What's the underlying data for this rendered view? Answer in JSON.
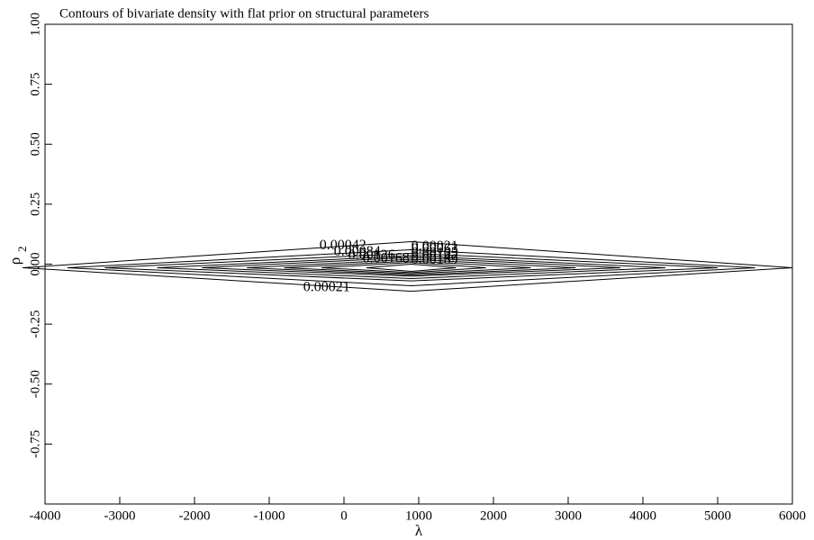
{
  "chart_data": {
    "type": "contour",
    "title": "Contours of bivariate density with flat prior on structural parameters",
    "xlabel": "λ",
    "ylabel": {
      "text": "ρ",
      "sub": "2"
    },
    "xlim": [
      -4000,
      6000
    ],
    "ylim": [
      -1,
      1
    ],
    "xticks": [
      -4000,
      -3000,
      -2000,
      -1000,
      0,
      1000,
      2000,
      3000,
      4000,
      5000,
      6000
    ],
    "yticks": [
      {
        "value": -0.75,
        "label": "-0.75"
      },
      {
        "value": -0.5,
        "label": "-0.50"
      },
      {
        "value": -0.25,
        "label": "-0.25"
      },
      {
        "value": 0,
        "label": "0.00"
      },
      {
        "value": 0.25,
        "label": "0.25"
      },
      {
        "value": 0.5,
        "label": "0.50"
      },
      {
        "value": 0.75,
        "label": "0.75"
      },
      {
        "value": 1,
        "label": "1.00"
      }
    ],
    "color": "#000000",
    "contours": [
      {
        "level": 0.00021,
        "x": [
          -4300,
          900,
          6000,
          900
        ],
        "y": [
          -0.015,
          0.094,
          -0.015,
          -0.113
        ]
      },
      {
        "level": 0.00042,
        "x": [
          -3700,
          900,
          5500,
          900
        ],
        "y": [
          -0.015,
          0.06,
          -0.015,
          -0.09
        ]
      },
      {
        "level": 0.00063,
        "x": [
          -3200,
          900,
          5000,
          900
        ],
        "y": [
          -0.015,
          0.045,
          -0.015,
          -0.07
        ]
      },
      {
        "level": 0.00084,
        "x": [
          -2500,
          900,
          4300,
          900
        ],
        "y": [
          -0.015,
          0.035,
          -0.015,
          -0.06
        ]
      },
      {
        "level": 0.00105,
        "x": [
          -1900,
          900,
          3700,
          900
        ],
        "y": [
          -0.015,
          0.028,
          -0.015,
          -0.05
        ]
      },
      {
        "level": 0.00126,
        "x": [
          -1300,
          900,
          3100,
          900
        ],
        "y": [
          -0.015,
          0.02,
          -0.015,
          -0.045
        ]
      },
      {
        "level": 0.00147,
        "x": [
          -800,
          900,
          2500,
          900
        ],
        "y": [
          -0.015,
          0.013,
          -0.015,
          -0.04
        ]
      },
      {
        "level": 0.00168,
        "x": [
          -300,
          900,
          1900,
          900
        ],
        "y": [
          -0.015,
          0.007,
          -0.015,
          -0.035
        ]
      },
      {
        "level": 0.00189,
        "x": [
          300,
          900,
          1500,
          900
        ],
        "y": [
          -0.015,
          0.0,
          -0.015,
          -0.03
        ]
      }
    ]
  }
}
